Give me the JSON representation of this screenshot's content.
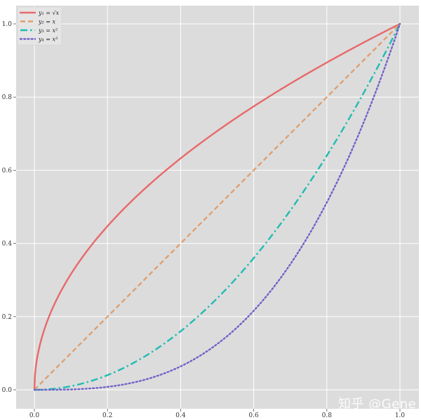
{
  "chart_data": {
    "type": "line",
    "title": "",
    "xlabel": "",
    "ylabel": "",
    "xlim": [
      -0.05,
      1.05
    ],
    "ylim": [
      -0.05,
      1.05
    ],
    "grid": true,
    "legend_position": "upper left",
    "x_ticks": [
      "0.0",
      "0.2",
      "0.4",
      "0.6",
      "0.8",
      "1.0"
    ],
    "y_ticks": [
      "0.0",
      "0.2",
      "0.4",
      "0.6",
      "0.8",
      "1.0"
    ],
    "x": [
      0,
      0.01,
      0.02,
      0.05,
      0.1,
      0.15,
      0.2,
      0.25,
      0.3,
      0.35,
      0.4,
      0.45,
      0.5,
      0.55,
      0.6,
      0.65,
      0.7,
      0.75,
      0.8,
      0.85,
      0.9,
      0.95,
      1.0
    ],
    "series": [
      {
        "name": "y1 = √x",
        "label": "y₁ = √x",
        "color": "#e8696a",
        "style": "solid",
        "values": [
          0,
          0.1,
          0.141,
          0.224,
          0.316,
          0.387,
          0.447,
          0.5,
          0.548,
          0.592,
          0.632,
          0.671,
          0.707,
          0.742,
          0.775,
          0.806,
          0.837,
          0.866,
          0.894,
          0.922,
          0.949,
          0.975,
          1.0
        ]
      },
      {
        "name": "y2 = x",
        "label": "y₂ = x",
        "color": "#e0a070",
        "style": "dashed",
        "values": [
          0,
          0.01,
          0.02,
          0.05,
          0.1,
          0.15,
          0.2,
          0.25,
          0.3,
          0.35,
          0.4,
          0.45,
          0.5,
          0.55,
          0.6,
          0.65,
          0.7,
          0.75,
          0.8,
          0.85,
          0.9,
          0.95,
          1.0
        ]
      },
      {
        "name": "y3 = x^2",
        "label": "y₃ = x²",
        "color": "#1fbcb4",
        "style": "dashdot",
        "values": [
          0,
          0.0001,
          0.0004,
          0.0025,
          0.01,
          0.0225,
          0.04,
          0.0625,
          0.09,
          0.1225,
          0.16,
          0.2025,
          0.25,
          0.3025,
          0.36,
          0.4225,
          0.49,
          0.5625,
          0.64,
          0.7225,
          0.81,
          0.9025,
          1.0
        ]
      },
      {
        "name": "y4 = x^3",
        "label": "y₄ = x³",
        "color": "#7062c8",
        "style": "dotted",
        "values": [
          0,
          1e-06,
          8e-06,
          0.000125,
          0.001,
          0.003375,
          0.008,
          0.015625,
          0.027,
          0.042875,
          0.064,
          0.091125,
          0.125,
          0.166375,
          0.216,
          0.274625,
          0.343,
          0.421875,
          0.512,
          0.614125,
          0.729,
          0.857375,
          1.0
        ]
      }
    ]
  },
  "watermark": {
    "text": "知乎 @Gene",
    "url": "https://blog.csdn.net/..."
  },
  "style": {
    "plot_background": "#dcdcdc",
    "grid_color": "#ffffff"
  }
}
